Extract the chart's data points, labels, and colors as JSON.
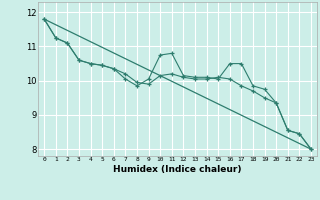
{
  "xlabel": "Humidex (Indice chaleur)",
  "background_color": "#cceee8",
  "grid_color": "#ffffff",
  "line_color": "#2e7d6e",
  "xlim": [
    -0.5,
    23.5
  ],
  "ylim": [
    7.8,
    12.3
  ],
  "xticks": [
    0,
    1,
    2,
    3,
    4,
    5,
    6,
    7,
    8,
    9,
    10,
    11,
    12,
    13,
    14,
    15,
    16,
    17,
    18,
    19,
    20,
    21,
    22,
    23
  ],
  "yticks": [
    8,
    9,
    10,
    11,
    12
  ],
  "series1_x": [
    0,
    1,
    2,
    3,
    4,
    5,
    6,
    7,
    8,
    9,
    10,
    11,
    12,
    13,
    14,
    15,
    16,
    17,
    18,
    19,
    20,
    21,
    22,
    23
  ],
  "series1_y": [
    11.8,
    11.25,
    11.1,
    10.6,
    10.5,
    10.45,
    10.35,
    10.2,
    9.95,
    9.9,
    10.15,
    10.2,
    10.1,
    10.05,
    10.05,
    10.1,
    10.05,
    9.85,
    9.7,
    9.5,
    9.35,
    8.55,
    8.45,
    8.0
  ],
  "series2_x": [
    0,
    1,
    2,
    3,
    4,
    5,
    6,
    7,
    8,
    9,
    10,
    11,
    12,
    13,
    14,
    15,
    16,
    17,
    18,
    19,
    20,
    21,
    22,
    23
  ],
  "series2_y": [
    11.8,
    11.25,
    11.1,
    10.6,
    10.5,
    10.45,
    10.35,
    10.05,
    9.85,
    10.05,
    10.75,
    10.8,
    10.15,
    10.1,
    10.1,
    10.05,
    10.5,
    10.5,
    9.85,
    9.75,
    9.35,
    8.55,
    8.45,
    8.0
  ],
  "trend_x": [
    0,
    23
  ],
  "trend_y": [
    11.8,
    8.0
  ]
}
